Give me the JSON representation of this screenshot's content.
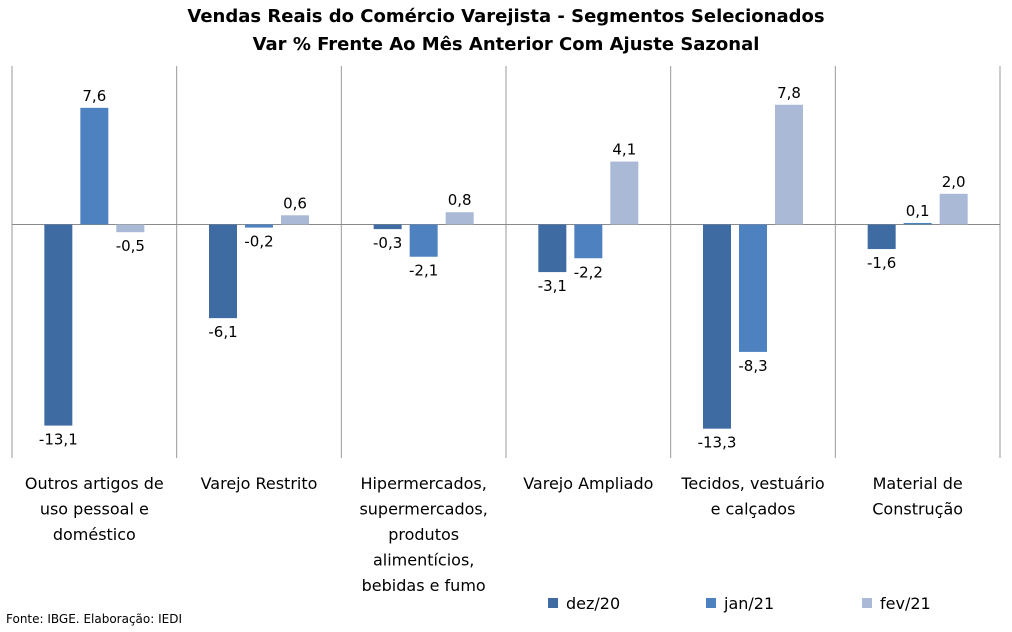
{
  "chart_data": {
    "type": "bar",
    "title": "Vendas Reais do Comércio Varejista - Segmentos Selecionados",
    "subtitle": "Var % Frente Ao Mês Anterior Com Ajuste Sazonal",
    "categories": [
      [
        "Outros artigos de",
        "uso pessoal e",
        "doméstico"
      ],
      [
        "Varejo Restrito"
      ],
      [
        "Hipermercados,",
        "supermercados,",
        "produtos",
        "alimentícios,",
        "bebidas e fumo"
      ],
      [
        "Varejo Ampliado"
      ],
      [
        "Tecidos, vestuário",
        "e calçados"
      ],
      [
        "Material de",
        "Construção"
      ]
    ],
    "series": [
      {
        "name": "dez/20",
        "color": "#3f6ba3",
        "values": [
          -13.1,
          -6.1,
          -0.3,
          -3.1,
          -13.3,
          -1.6
        ],
        "labels": [
          "-13,1",
          "-6,1",
          "-0,3",
          "-3,1",
          "-13,3",
          "-1,6"
        ]
      },
      {
        "name": "jan/21",
        "color": "#4e81c0",
        "values": [
          7.6,
          -0.2,
          -2.1,
          -2.2,
          -8.3,
          0.1
        ],
        "labels": [
          "7,6",
          "-0,2",
          "-2,1",
          "-2,2",
          "-8,3",
          "0,1"
        ]
      },
      {
        "name": "fev/21",
        "color": "#aab9d6",
        "values": [
          -0.5,
          0.6,
          0.8,
          4.1,
          7.8,
          2.0
        ],
        "labels": [
          "-0,5",
          "0,6",
          "0,8",
          "4,1",
          "7,8",
          "2,0"
        ]
      }
    ],
    "grid": false,
    "legend_position": "bottom-right"
  },
  "source": "Fonte: IBGE. Elaboração: IEDI"
}
